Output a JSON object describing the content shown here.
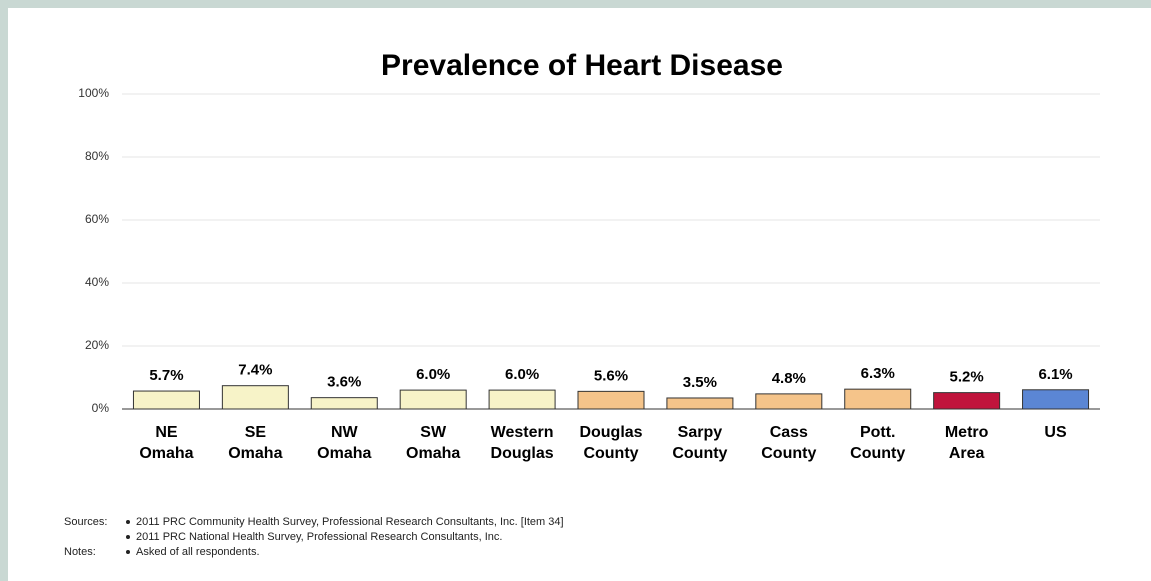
{
  "chart_data": {
    "type": "bar",
    "title": "Prevalence of Heart Disease",
    "categories": [
      [
        "NE",
        "Omaha"
      ],
      [
        "SE",
        "Omaha"
      ],
      [
        "NW",
        "Omaha"
      ],
      [
        "SW",
        "Omaha"
      ],
      [
        "Western",
        "Douglas"
      ],
      [
        "Douglas",
        "County"
      ],
      [
        "Sarpy",
        "County"
      ],
      [
        "Cass",
        "County"
      ],
      [
        "Pott.",
        "County"
      ],
      [
        "Metro",
        "Area"
      ],
      [
        "US"
      ]
    ],
    "values": [
      5.7,
      7.4,
      3.6,
      6.0,
      6.0,
      5.6,
      3.5,
      4.8,
      6.3,
      5.2,
      6.1
    ],
    "value_labels": [
      "5.7%",
      "7.4%",
      "3.6%",
      "6.0%",
      "6.0%",
      "5.6%",
      "3.5%",
      "4.8%",
      "6.3%",
      "5.2%",
      "6.1%"
    ],
    "colors": [
      "#f7f3c8",
      "#f7f3c8",
      "#f7f3c8",
      "#f7f3c8",
      "#f7f3c8",
      "#f5c48a",
      "#f5c48a",
      "#f5c48a",
      "#f5c48a",
      "#c0143c",
      "#5b86d4"
    ],
    "ylim": [
      0,
      100
    ],
    "yticks": [
      {
        "value": 0,
        "label": "0%"
      },
      {
        "value": 20,
        "label": "20%"
      },
      {
        "value": 40,
        "label": "40%"
      },
      {
        "value": 60,
        "label": "60%"
      },
      {
        "value": 80,
        "label": "80%"
      },
      {
        "value": 100,
        "label": "100%"
      }
    ],
    "grid": true
  },
  "notes": {
    "sources_label": "Sources:",
    "sources": [
      "2011 PRC Community Health Survey,  Professional Research Consultants, Inc.  [Item 34]",
      "2011 PRC National Health Survey, Professional Research Consultants, Inc."
    ],
    "notes_label": "Notes:",
    "notes": [
      "Asked of all respondents."
    ]
  }
}
